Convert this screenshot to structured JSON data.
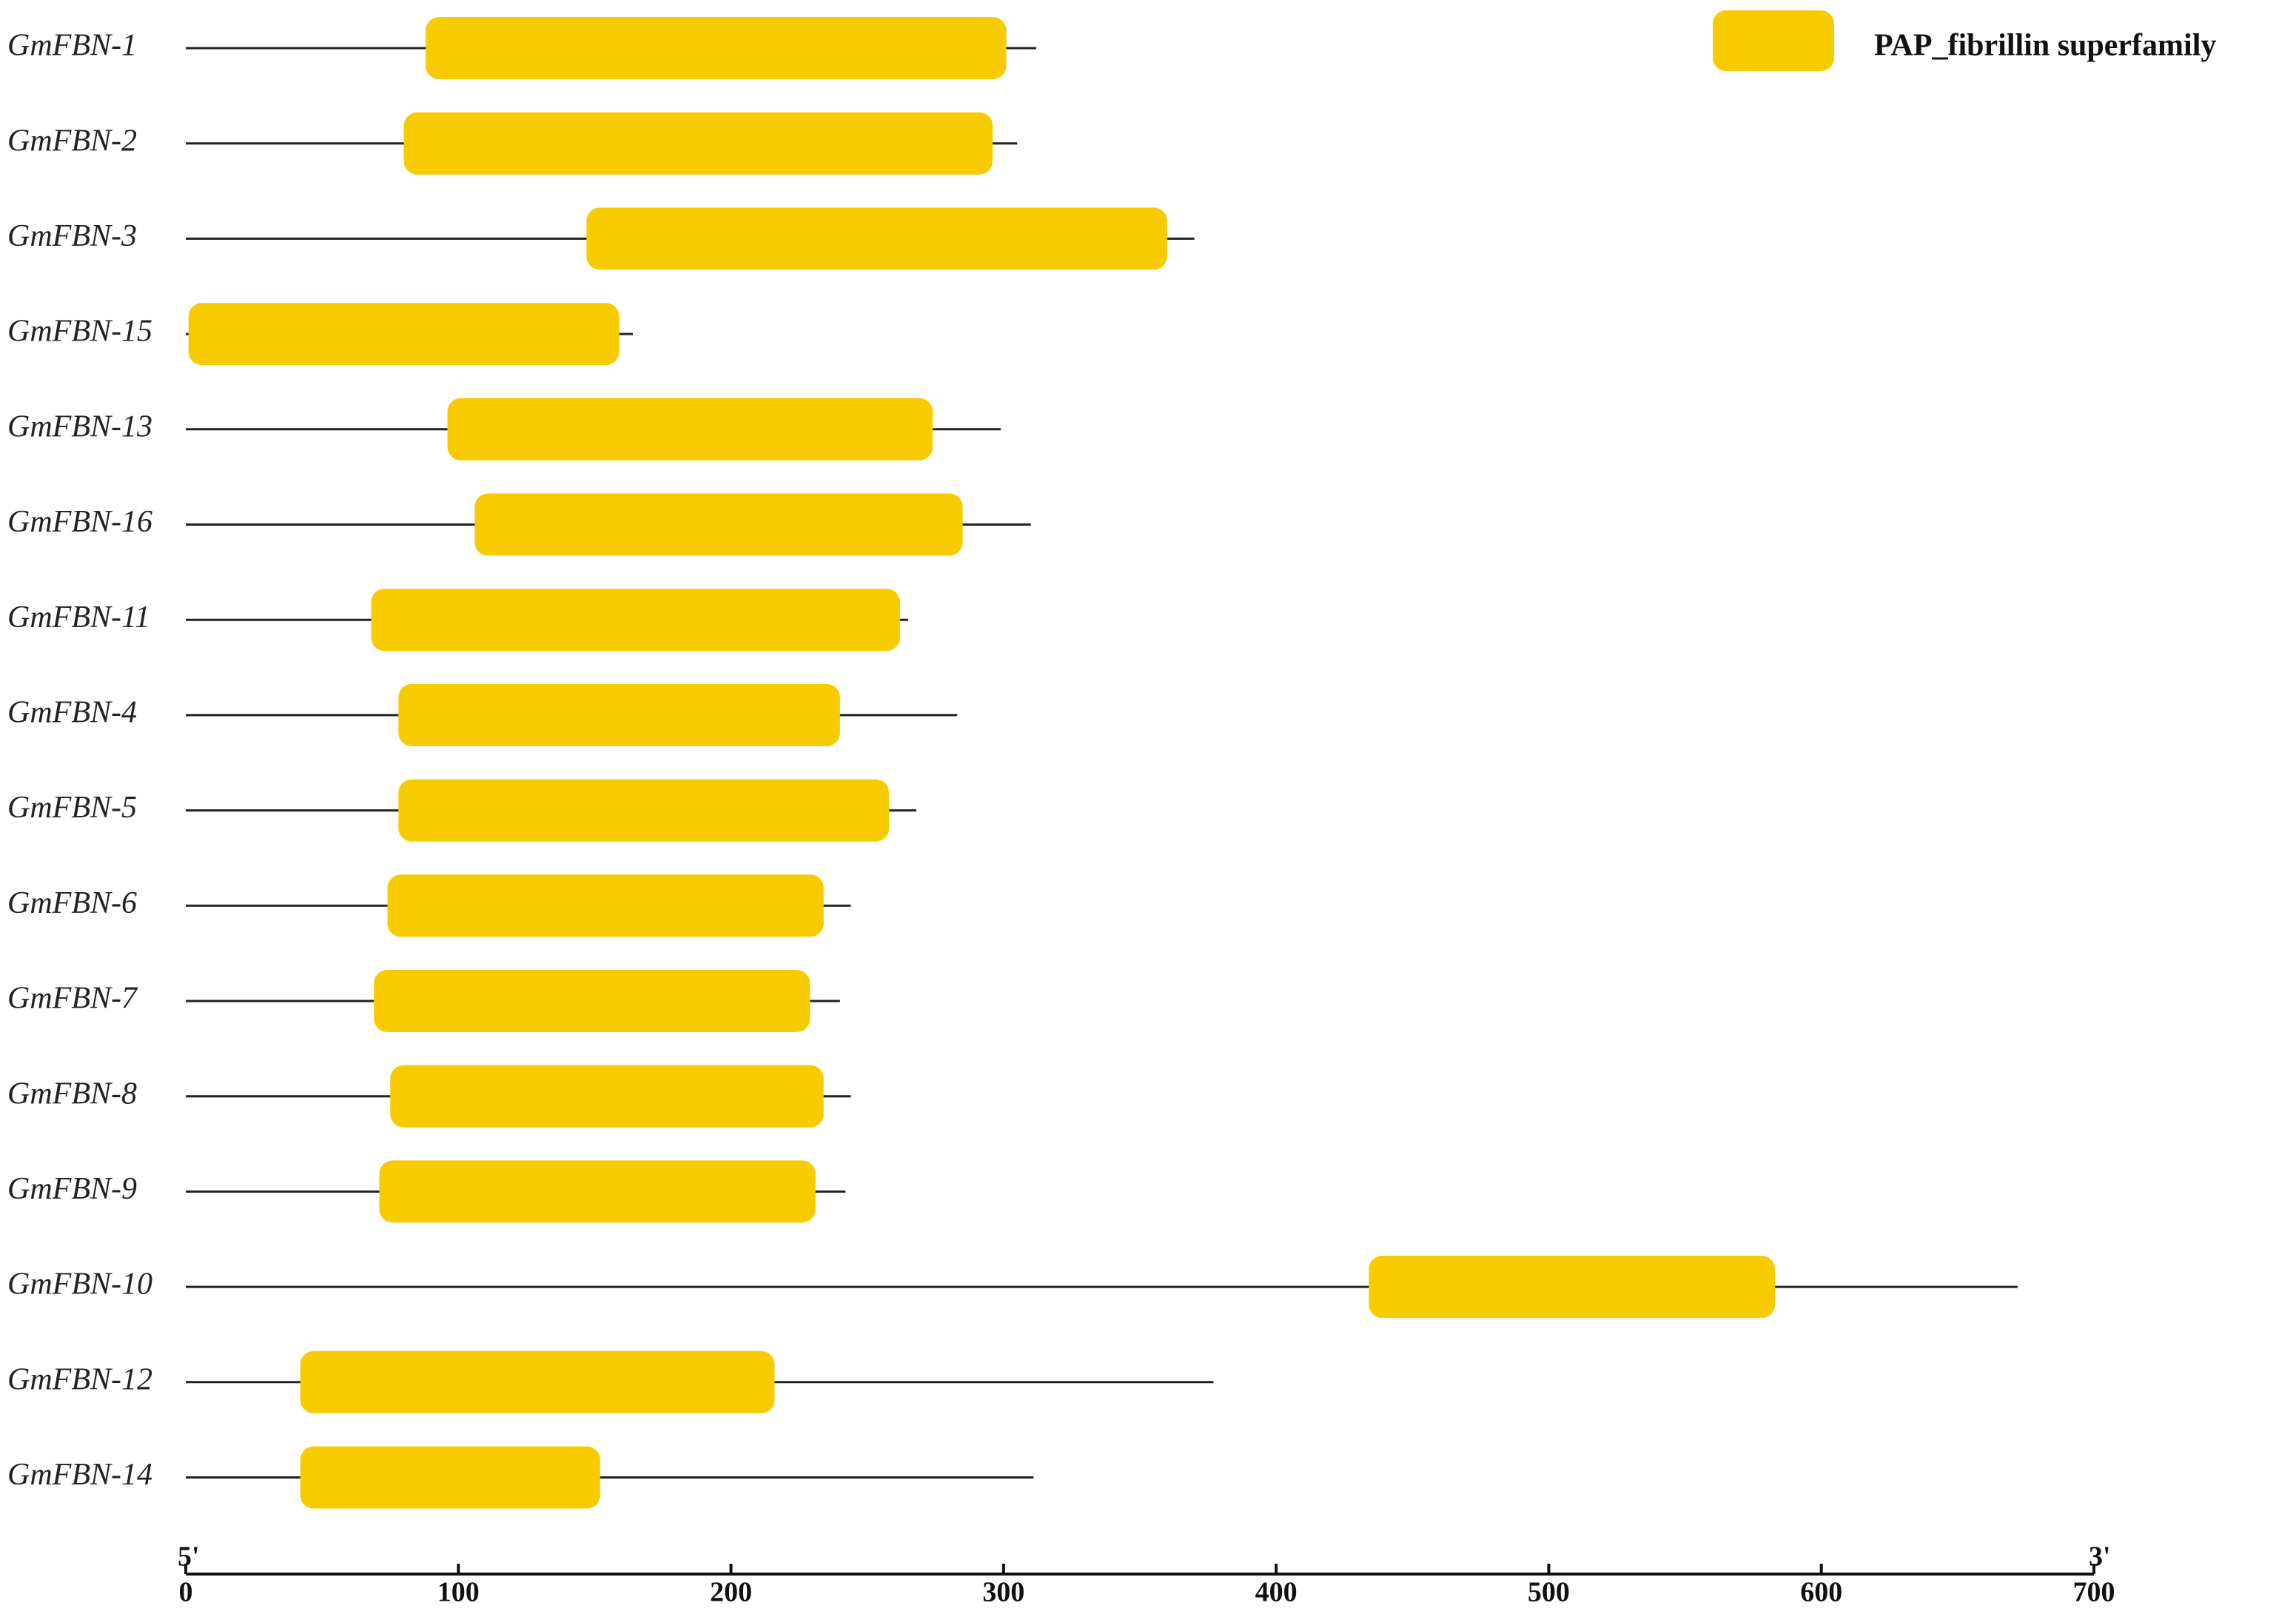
{
  "chart_data": {
    "type": "domain",
    "categories": [
      "GmFBN-1",
      "GmFBN-2",
      "GmFBN-3",
      "GmFBN-15",
      "GmFBN-13",
      "GmFBN-16",
      "GmFBN-11",
      "GmFBN-4",
      "GmFBN-5",
      "GmFBN-6",
      "GmFBN-7",
      "GmFBN-8",
      "GmFBN-9",
      "GmFBN-10",
      "GmFBN-12",
      "GmFBN-14"
    ],
    "lengths": [
      312,
      305,
      370,
      164,
      299,
      310,
      265,
      283,
      268,
      244,
      240,
      244,
      242,
      672,
      377,
      311
    ],
    "series": [
      {
        "name": "PAP_fibrillin superfamily",
        "color": "#f7cb00",
        "start": [
          88,
          80,
          147,
          1,
          96,
          106,
          68,
          78,
          78,
          74,
          69,
          75,
          71,
          434,
          42,
          42
        ],
        "end": [
          301,
          296,
          360,
          159,
          274,
          285,
          262,
          240,
          258,
          234,
          229,
          234,
          231,
          583,
          216,
          152
        ]
      }
    ],
    "axis_start_label": "5'",
    "axis_end_label": "3'",
    "xlim": [
      0,
      700
    ],
    "xticks": [
      0,
      100,
      200,
      300,
      400,
      500,
      600,
      700
    ],
    "legend": "top-right"
  }
}
